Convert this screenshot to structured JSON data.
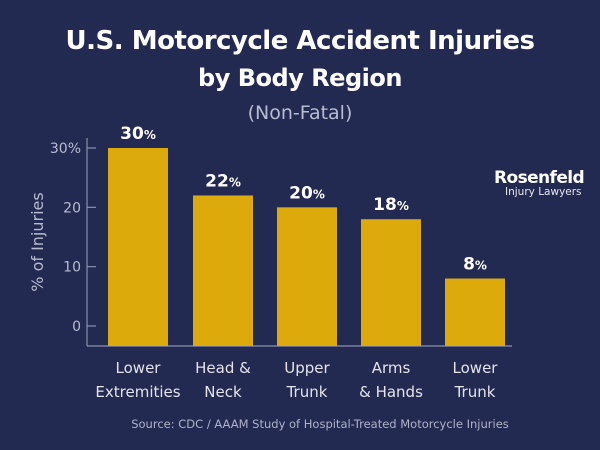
{
  "chart_data": {
    "type": "bar",
    "title": "U.S. Motorcycle Accident Injuries",
    "title_line2": "by Body Region",
    "subtitle": "(Non-Fatal)",
    "ylabel": "% of Injuries",
    "xlabel": "",
    "categories": [
      [
        "Lower",
        "Extremities"
      ],
      [
        "Head &",
        "Neck"
      ],
      [
        "Upper",
        "Trunk"
      ],
      [
        "Arms",
        "& Hands"
      ],
      [
        "Lower",
        "Trunk"
      ]
    ],
    "values": [
      30,
      22,
      20,
      18,
      8
    ],
    "value_suffix": "%",
    "yticks": [
      "0",
      "10",
      "20",
      "30%"
    ],
    "ytick_values": [
      0,
      10,
      20,
      30
    ],
    "ylim": [
      0,
      30
    ],
    "grid": false,
    "bar_color": "#dcaa0b",
    "background_color": "#232a52",
    "source": "Source: CDC / AAAM Study of Hospital-Treated Motorcycle Injuries"
  },
  "logo": {
    "name": "Rosenfeld",
    "tagline": "Injury Lawyers"
  }
}
